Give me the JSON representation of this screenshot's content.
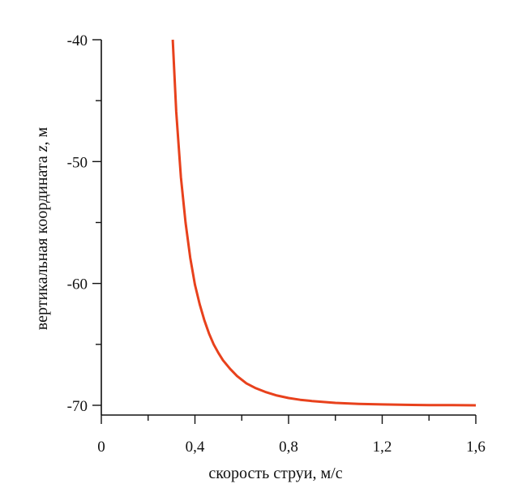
{
  "chart_data": {
    "type": "line",
    "xlabel": "скорость струи, м/с",
    "ylabel_parts": [
      "вертикальная координата ",
      "z",
      ", м"
    ],
    "xlim": [
      0,
      1.6
    ],
    "ylim": [
      -70.8,
      -40
    ],
    "x_ticks": [
      0,
      0.4,
      0.8,
      1.2,
      1.6
    ],
    "x_tick_labels": [
      "0",
      "0,4",
      "0,8",
      "1,2",
      "1,6"
    ],
    "y_ticks": [
      -40,
      -50,
      -60,
      -70
    ],
    "y_tick_labels": [
      "-40",
      "-50",
      "-60",
      "-70"
    ],
    "grid": false,
    "series": [
      {
        "color": "#e8411c",
        "x": [
          0.305,
          0.32,
          0.34,
          0.36,
          0.38,
          0.4,
          0.42,
          0.44,
          0.46,
          0.48,
          0.5,
          0.52,
          0.55,
          0.58,
          0.62,
          0.66,
          0.7,
          0.75,
          0.8,
          0.85,
          0.9,
          1.0,
          1.1,
          1.2,
          1.3,
          1.4,
          1.5,
          1.6
        ],
        "y": [
          -40.0,
          -45.9,
          -51.3,
          -55.0,
          -57.9,
          -60.1,
          -61.7,
          -63.0,
          -64.1,
          -65.0,
          -65.7,
          -66.3,
          -67.0,
          -67.6,
          -68.2,
          -68.6,
          -68.9,
          -69.2,
          -69.4,
          -69.55,
          -69.65,
          -69.8,
          -69.88,
          -69.93,
          -69.96,
          -69.98,
          -69.99,
          -70.0
        ]
      }
    ]
  }
}
